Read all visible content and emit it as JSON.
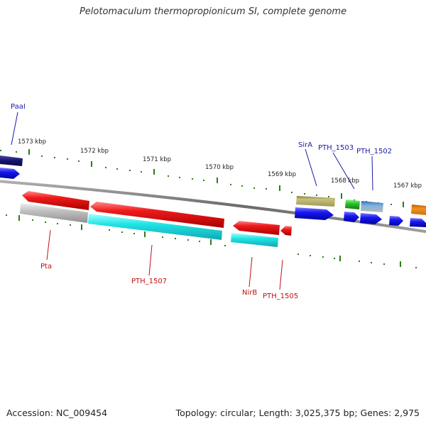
{
  "title": "Pelotomaculum thermopropionicum SI, complete genome",
  "footer": {
    "accession": "Accession: NC_009454",
    "stats": "Topology: circular; Length: 3,025,375 bp; Genes: 2,975"
  },
  "ruler": {
    "tick_labels": [
      "1573 kbp",
      "1572 kbp",
      "1571 kbp",
      "1570 kbp",
      "1569 kbp",
      "1568 kbp",
      "1567 kbp"
    ]
  },
  "gene_labels": {
    "forward": [
      "PaaI",
      "SirA",
      "PTH_1503",
      "PTH_1502"
    ],
    "reverse": [
      "Pta",
      "PTH_1507",
      "NirB",
      "PTH_1505"
    ]
  },
  "colors": {
    "forward_label": "#1a1aa8",
    "reverse_label": "#c01010",
    "backbone": "#808080",
    "tick": "#2e7d1a",
    "red_gene": "#e81414",
    "cyan_gene": "#20e0e0",
    "blue_gene": "#1818ee",
    "navy_gene": "#141470",
    "gray_gene": "#b4b4b4",
    "olive_gene": "#b8b070",
    "green_gene": "#30c030",
    "steel_gene": "#6090c0",
    "orange_gene": "#f09020"
  }
}
